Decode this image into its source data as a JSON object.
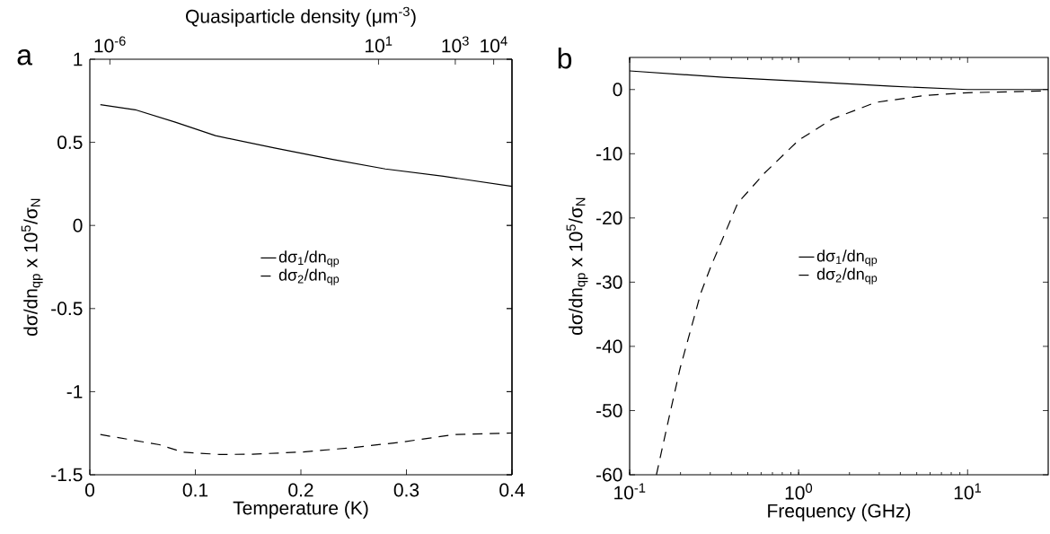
{
  "chart_data": [
    {
      "type": "line",
      "annotations": [
        "a"
      ],
      "xlabel": "Temperature (K)",
      "ylabel": "dσ/dn$_{qp}$ x 10$^{5}$/σ$_{N}$",
      "x2label": "Quasiparticle density (μm$^{-3}$)",
      "xlim": [
        0,
        0.4
      ],
      "xticks": [
        0,
        0.1,
        0.2,
        0.3,
        0.4
      ],
      "ylim": [
        -1.5,
        1
      ],
      "yticks": [
        -1.5,
        -1,
        -0.5,
        0,
        0.5,
        1
      ],
      "log": "x2",
      "x2lim": [
        3e-07,
        30000.0
      ],
      "x2ticks": [
        {
          "value": 1e-06,
          "label": "10$^{-6}$"
        },
        {
          "value": 10,
          "label": "10$^{1}$"
        },
        {
          "value": 1000,
          "label": "10$^{3}$"
        },
        {
          "value": 10000,
          "label": "10$^{4}$"
        }
      ],
      "legend": "center",
      "grid": false,
      "series": [
        {
          "name": "dσ$_{1}$/dn$_{qp}$",
          "color": "#000000",
          "line_style": "solid",
          "x": [
            0.01,
            0.043,
            0.081,
            0.119,
            0.175,
            0.23,
            0.28,
            0.335,
            0.4
          ],
          "values": [
            0.727,
            0.696,
            0.621,
            0.54,
            0.466,
            0.397,
            0.34,
            0.296,
            0.235
          ]
        },
        {
          "name": "dσ$_{2}$/dn$_{qp}$",
          "color": "#000000",
          "line_style": "dashed",
          "x": [
            0.01,
            0.066,
            0.088,
            0.123,
            0.154,
            0.202,
            0.25,
            0.297,
            0.345,
            0.4
          ],
          "values": [
            -1.258,
            -1.319,
            -1.364,
            -1.378,
            -1.376,
            -1.363,
            -1.336,
            -1.302,
            -1.258,
            -1.249
          ]
        }
      ]
    },
    {
      "type": "line",
      "annotations": [
        "b"
      ],
      "xlabel": "Frequency (GHz)",
      "ylabel": "dσ/dn$_{qp}$ x 10$^{5}$/σ$_{N}$",
      "log": "x",
      "xlim": [
        0.1,
        30
      ],
      "xticks": [
        {
          "value": 0.1,
          "label": "10$^{-1}$"
        },
        {
          "value": 1,
          "label": "10$^{0}$"
        },
        {
          "value": 10,
          "label": "10$^{1}$"
        }
      ],
      "ylim": [
        -60,
        5
      ],
      "yticks": [
        -60,
        -50,
        -40,
        -30,
        -20,
        -10,
        0
      ],
      "legend": "center",
      "grid": false,
      "series": [
        {
          "name": "dσ$_{1}$/dn$_{qp}$",
          "color": "#000000",
          "line_style": "solid",
          "x": [
            0.1,
            0.36,
            1,
            3.6,
            10,
            30
          ],
          "values": [
            2.9,
            1.9,
            1.3,
            0.5,
            0.0,
            0
          ]
        },
        {
          "name": "dσ$_{2}$/dn$_{qp}$",
          "color": "#000000",
          "line_style": "dashed",
          "x": [
            0.144,
            0.174,
            0.199,
            0.263,
            0.301,
            0.436,
            0.629,
            1,
            1.58,
            2.86,
            5.7,
            10,
            30
          ],
          "values": [
            -60,
            -50.2,
            -43.4,
            -31.8,
            -27.7,
            -17.7,
            -13.0,
            -7.9,
            -4.6,
            -2.0,
            -0.9,
            -0.5,
            -0.2
          ]
        }
      ]
    }
  ]
}
